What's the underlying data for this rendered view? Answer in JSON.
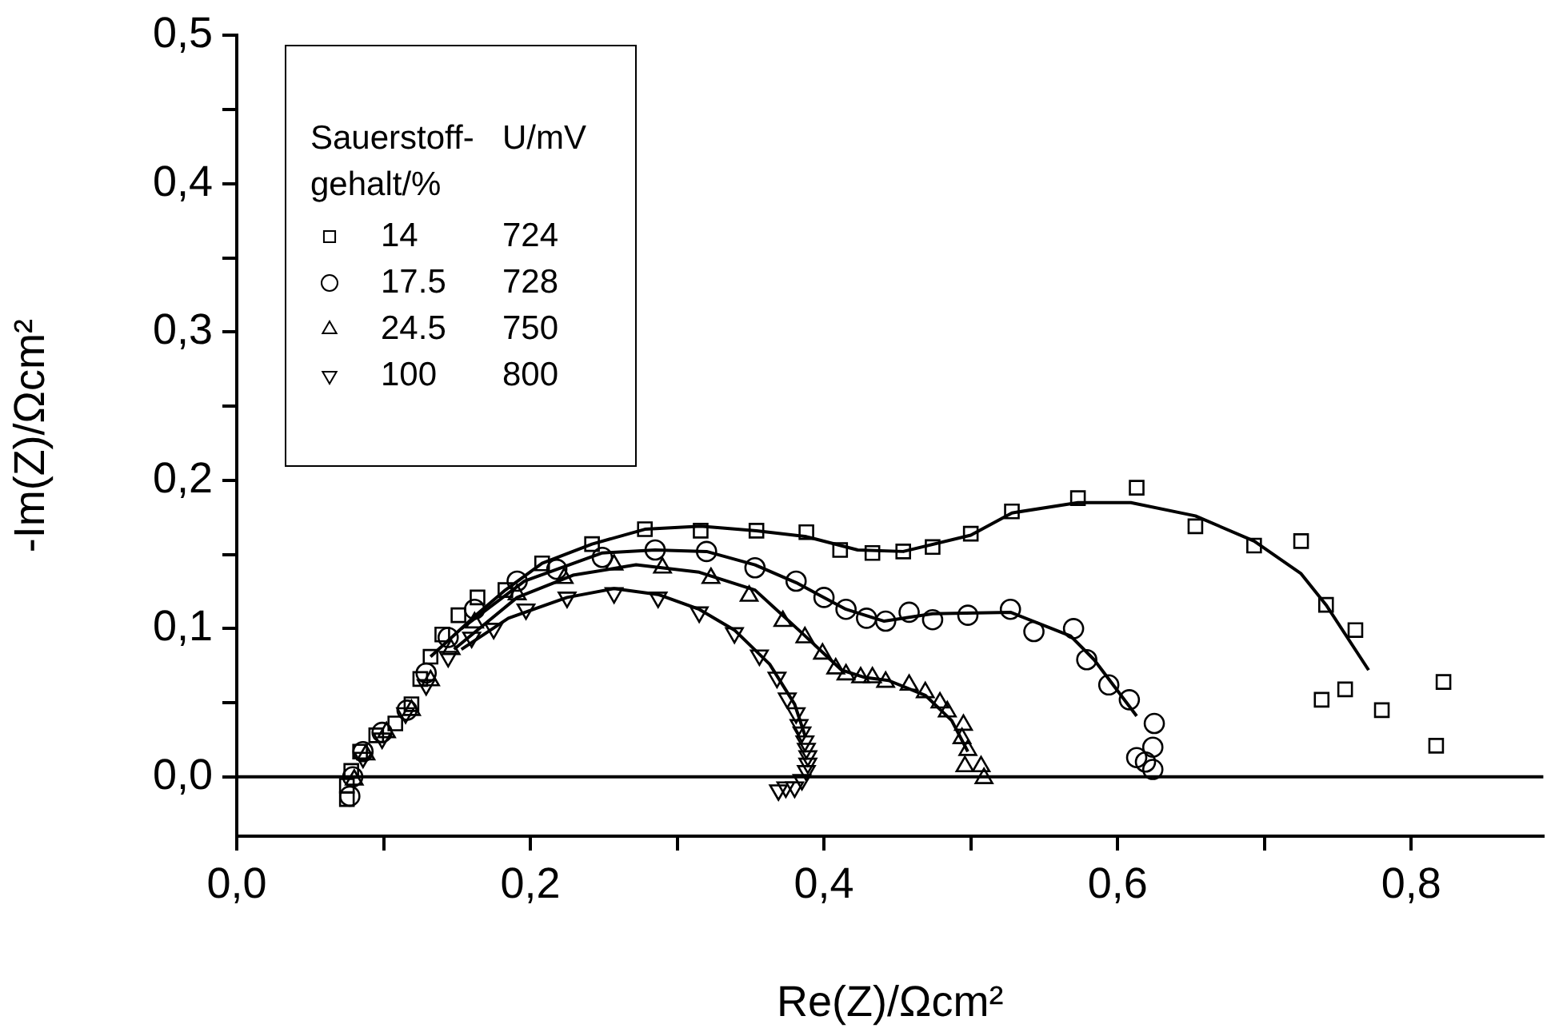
{
  "chart_data": {
    "type": "scatter",
    "xlabel": "Re(Z)/Ωcm²",
    "ylabel": "-Im(Z)/Ωcm²",
    "legend_title": "Sauerstoff-gehalt/%",
    "annotations": [
      "U/mV",
      "724",
      "728",
      "750",
      "800"
    ],
    "legend": "top left",
    "grid": false,
    "xlim": [
      0,
      0.89
    ],
    "ylim": [
      -0.04,
      0.5
    ],
    "xticks": [
      {
        "value": 0,
        "label": "0,0"
      },
      {
        "value": 0.1,
        "label": null
      },
      {
        "value": 0.2,
        "label": "0,2"
      },
      {
        "value": 0.3,
        "label": null
      },
      {
        "value": 0.4,
        "label": "0,4"
      },
      {
        "value": 0.5,
        "label": null
      },
      {
        "value": 0.6,
        "label": "0,6"
      },
      {
        "value": 0.7,
        "label": null
      },
      {
        "value": 0.8,
        "label": "0,8"
      }
    ],
    "yticks": [
      {
        "value": 0,
        "label": "0,0"
      },
      {
        "value": 0.05,
        "label": null
      },
      {
        "value": 0.1,
        "label": "0,1"
      },
      {
        "value": 0.15,
        "label": null
      },
      {
        "value": 0.2,
        "label": "0,2"
      },
      {
        "value": 0.25,
        "label": null
      },
      {
        "value": 0.3,
        "label": "0,3"
      },
      {
        "value": 0.35,
        "label": null
      },
      {
        "value": 0.4,
        "label": "0,4"
      },
      {
        "value": 0.45,
        "label": null
      },
      {
        "value": 0.5,
        "label": "0,5"
      }
    ],
    "ref_lines": [
      {
        "axis": "y",
        "value": 0,
        "color": "#000000"
      }
    ],
    "series": [
      {
        "name": "14",
        "marker": "square",
        "color": "#000000",
        "x": [
          0.075,
          0.075,
          0.078,
          0.084,
          0.095,
          0.108,
          0.119,
          0.125,
          0.132,
          0.14,
          0.151,
          0.164,
          0.183,
          0.208,
          0.242,
          0.278,
          0.316,
          0.354,
          0.388,
          0.411,
          0.433,
          0.454,
          0.474,
          0.5,
          0.528,
          0.573,
          0.613,
          0.653,
          0.693,
          0.725,
          0.742,
          0.762,
          0.739,
          0.755,
          0.78,
          0.822,
          0.817
        ],
        "values": [
          -0.015,
          -0.006,
          0.004,
          0.017,
          0.028,
          0.036,
          0.049,
          0.066,
          0.081,
          0.096,
          0.109,
          0.121,
          0.126,
          0.144,
          0.157,
          0.167,
          0.166,
          0.166,
          0.165,
          0.153,
          0.151,
          0.152,
          0.155,
          0.164,
          0.179,
          0.188,
          0.195,
          0.169,
          0.156,
          0.159,
          0.116,
          0.099,
          0.052,
          0.059,
          0.045,
          0.064,
          0.021
        ]
      },
      {
        "name": "17.5",
        "marker": "circle",
        "color": "#000000",
        "x": [
          0.077,
          0.079,
          0.086,
          0.099,
          0.116,
          0.129,
          0.144,
          0.162,
          0.191,
          0.218,
          0.249,
          0.285,
          0.32,
          0.353,
          0.381,
          0.4,
          0.415,
          0.429,
          0.442,
          0.458,
          0.474,
          0.498,
          0.527,
          0.543,
          0.57,
          0.579,
          0.594,
          0.608,
          0.625,
          0.624,
          0.613,
          0.619,
          0.624
        ],
        "values": [
          -0.013,
          0,
          0.017,
          0.03,
          0.045,
          0.07,
          0.094,
          0.113,
          0.132,
          0.14,
          0.148,
          0.153,
          0.152,
          0.141,
          0.132,
          0.121,
          0.113,
          0.107,
          0.105,
          0.111,
          0.106,
          0.109,
          0.113,
          0.098,
          0.1,
          0.079,
          0.062,
          0.052,
          0.036,
          0.02,
          0.013,
          0.01,
          0.005
        ]
      },
      {
        "name": "24.5",
        "marker": "triangle",
        "color": "#000000",
        "x": [
          0.08,
          0.088,
          0.102,
          0.119,
          0.132,
          0.146,
          0.162,
          0.191,
          0.223,
          0.257,
          0.29,
          0.323,
          0.349,
          0.372,
          0.387,
          0.399,
          0.408,
          0.415,
          0.425,
          0.433,
          0.442,
          0.458,
          0.469,
          0.479,
          0.484,
          0.495,
          0.494,
          0.498,
          0.496,
          0.507,
          0.509
        ],
        "values": [
          -0.002,
          0.015,
          0.03,
          0.045,
          0.065,
          0.086,
          0.104,
          0.123,
          0.134,
          0.143,
          0.141,
          0.134,
          0.122,
          0.105,
          0.094,
          0.083,
          0.073,
          0.069,
          0.067,
          0.067,
          0.064,
          0.062,
          0.057,
          0.05,
          0.044,
          0.035,
          0.026,
          0.018,
          0.007,
          0.007,
          -0.001
        ]
      },
      {
        "name": "100",
        "marker": "triangle-down",
        "color": "#000000",
        "x": [
          0.086,
          0.099,
          0.115,
          0.129,
          0.144,
          0.16,
          0.175,
          0.197,
          0.225,
          0.257,
          0.287,
          0.315,
          0.339,
          0.356,
          0.368,
          0.375,
          0.381,
          0.383,
          0.385,
          0.387,
          0.388,
          0.389,
          0.389,
          0.388,
          0.385,
          0.38,
          0.374,
          0.369
        ],
        "values": [
          0.013,
          0.026,
          0.043,
          0.062,
          0.081,
          0.094,
          0.1,
          0.113,
          0.121,
          0.124,
          0.121,
          0.111,
          0.097,
          0.082,
          0.067,
          0.053,
          0.043,
          0.035,
          0.03,
          0.024,
          0.019,
          0.014,
          0.009,
          0.004,
          -0.002,
          -0.007,
          -0.007,
          -0.009
        ]
      },
      {
        "type": "line",
        "marker": "none",
        "color": "#000000",
        "x": [
          0.132,
          0.164,
          0.183,
          0.208,
          0.242,
          0.278,
          0.316,
          0.354,
          0.388,
          0.423,
          0.454,
          0.5,
          0.528,
          0.573,
          0.609,
          0.653,
          0.693,
          0.725,
          0.742,
          0.771
        ],
        "values": [
          0.081,
          0.11,
          0.126,
          0.144,
          0.157,
          0.167,
          0.169,
          0.166,
          0.162,
          0.153,
          0.152,
          0.163,
          0.178,
          0.185,
          0.185,
          0.176,
          0.159,
          0.137,
          0.116,
          0.072
        ]
      },
      {
        "type": "line",
        "marker": "none",
        "color": "#000000",
        "x": [
          0.153,
          0.196,
          0.249,
          0.285,
          0.32,
          0.353,
          0.381,
          0.415,
          0.441,
          0.474,
          0.527,
          0.568,
          0.584,
          0.613
        ],
        "values": [
          0.1,
          0.132,
          0.151,
          0.153,
          0.152,
          0.143,
          0.131,
          0.113,
          0.105,
          0.11,
          0.111,
          0.095,
          0.079,
          0.041
        ]
      },
      {
        "type": "line",
        "marker": "none",
        "color": "#000000",
        "x": [
          0.148,
          0.191,
          0.229,
          0.272,
          0.315,
          0.353,
          0.385,
          0.412,
          0.428,
          0.444,
          0.469,
          0.487,
          0.498
        ],
        "values": [
          0.086,
          0.121,
          0.136,
          0.143,
          0.138,
          0.126,
          0.097,
          0.072,
          0.067,
          0.065,
          0.055,
          0.038,
          0.017
        ]
      },
      {
        "type": "line",
        "marker": "none",
        "color": "#000000",
        "x": [
          0.153,
          0.185,
          0.225,
          0.257,
          0.287,
          0.315,
          0.339,
          0.363,
          0.38,
          0.387
        ],
        "values": [
          0.086,
          0.107,
          0.121,
          0.127,
          0.123,
          0.113,
          0.099,
          0.076,
          0.049,
          0.028
        ]
      }
    ]
  }
}
